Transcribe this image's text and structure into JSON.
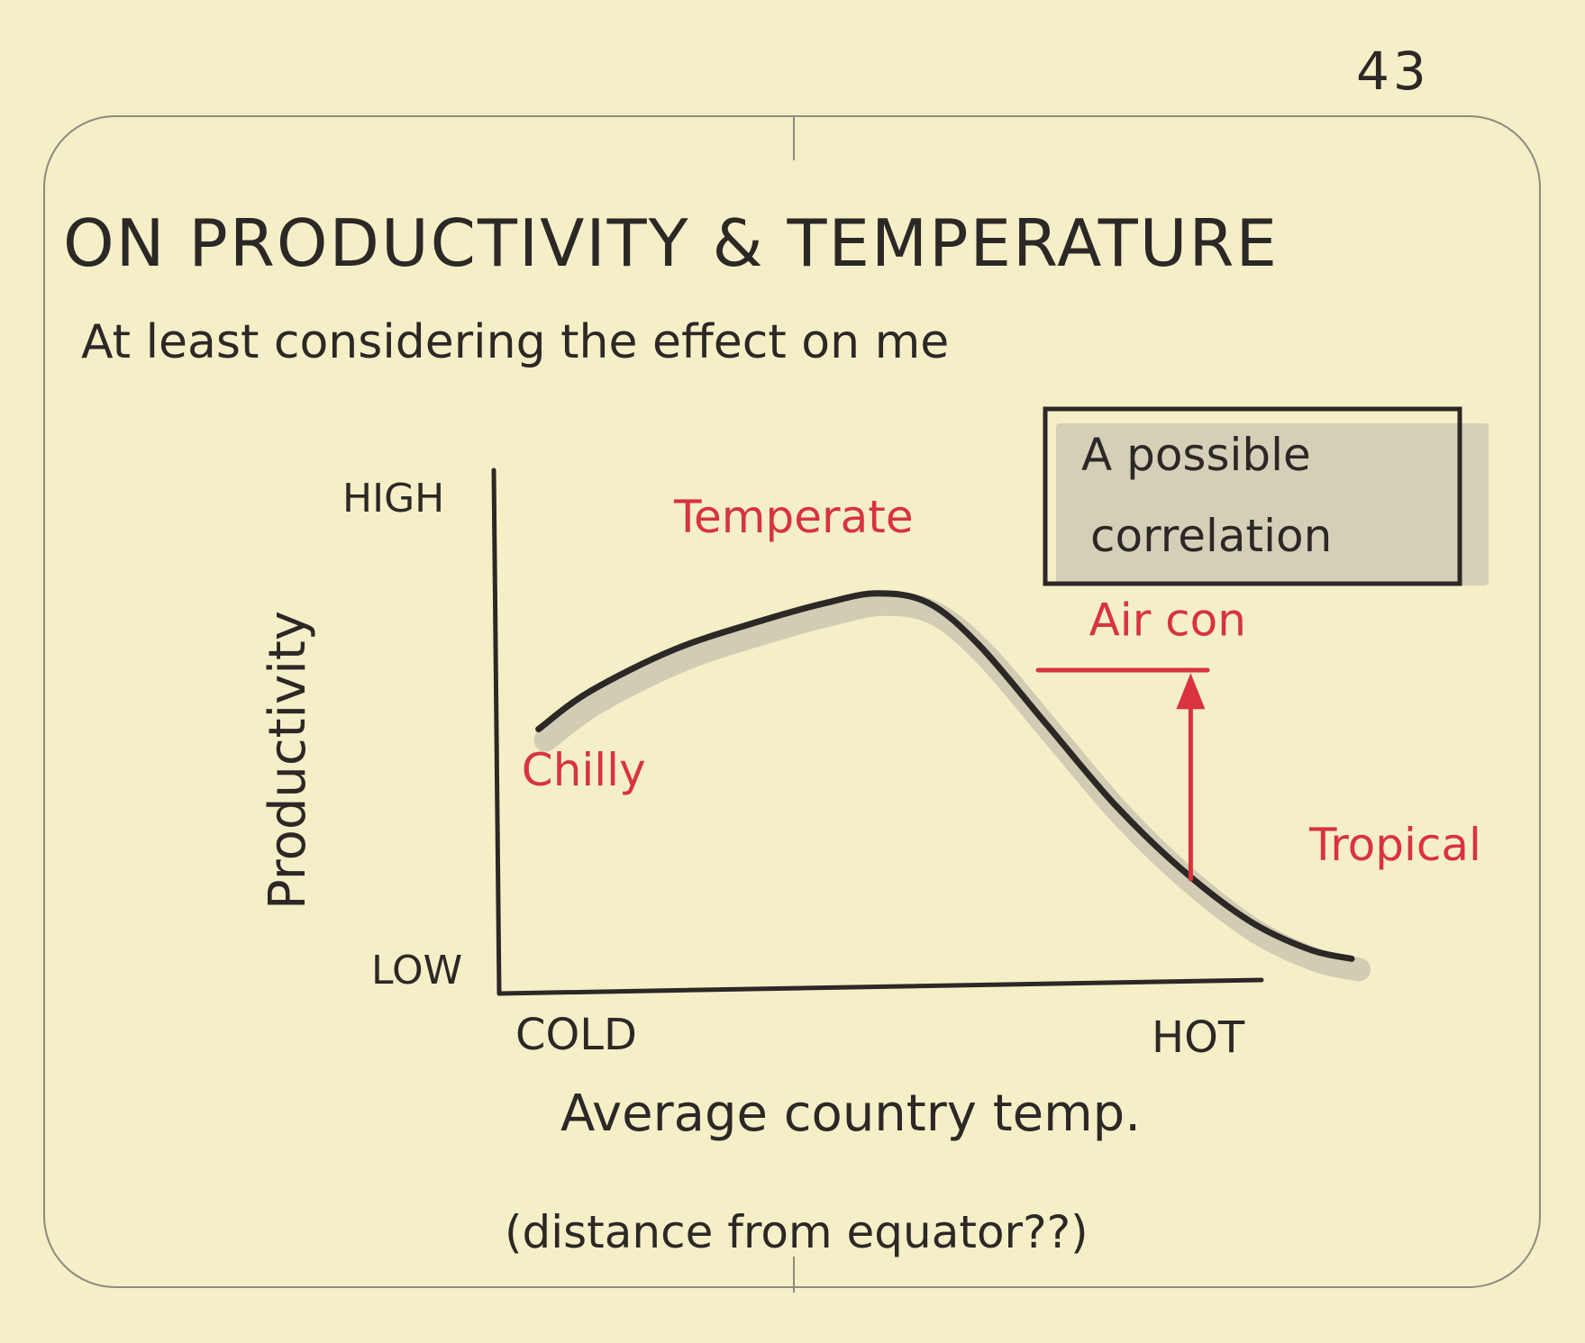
{
  "page_number": "43",
  "title": "ON PRODUCTIVITY & TEMPERATURE",
  "subtitle": "At least considering the effect on me",
  "callout": {
    "line1": "A possible",
    "line2": "correlation"
  },
  "colors": {
    "paper": "#f5efc8",
    "ink": "#2c2826",
    "accent_red": "#d8333f"
  },
  "chart_data": {
    "type": "line",
    "xlabel": "Average country temp.",
    "xlabel_note": "(distance from equator??)",
    "ylabel": "Productivity",
    "x_tick_labels": {
      "low": "COLD",
      "high": "HOT"
    },
    "y_tick_labels": {
      "low": "LOW",
      "high": "HIGH"
    },
    "xlim": [
      0,
      1
    ],
    "ylim": [
      0,
      1
    ],
    "grid": false,
    "x": [
      0.04,
      0.1,
      0.2,
      0.3,
      0.38,
      0.44,
      0.5,
      0.56,
      0.64,
      0.72,
      0.8,
      0.88,
      0.95,
      1.0
    ],
    "y": [
      0.52,
      0.6,
      0.69,
      0.75,
      0.79,
      0.81,
      0.79,
      0.7,
      0.53,
      0.36,
      0.22,
      0.11,
      0.05,
      0.03
    ],
    "annotations": [
      {
        "text": "Chilly",
        "x": 0.02,
        "y": 0.4
      },
      {
        "text": "Temperate",
        "x": 0.2,
        "y": 0.94
      },
      {
        "text": "Tropical",
        "x": 0.95,
        "y": 0.24
      },
      {
        "text": "Air con",
        "x": 0.69,
        "y": 0.72
      }
    ],
    "arrow": {
      "label": "Air con",
      "x": 0.81,
      "from_y": 0.2,
      "to_y": 0.64
    }
  }
}
